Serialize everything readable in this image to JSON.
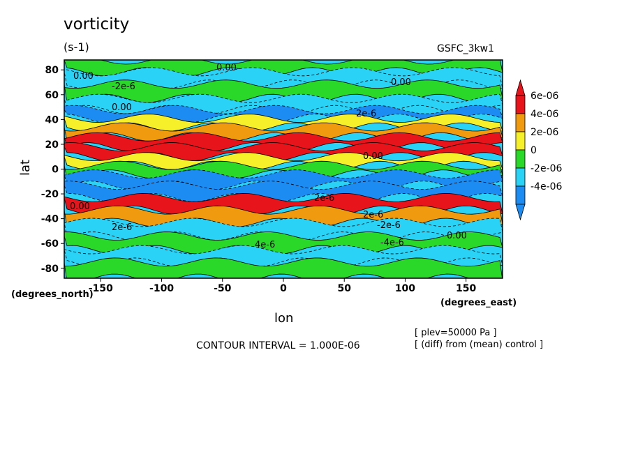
{
  "chart_data": {
    "type": "contour-map",
    "title": "vorticity",
    "units": "(s-1)",
    "model": "GSFC_3kw1",
    "xlabel": "lon",
    "ylabel": "lat",
    "x_unit_label": "(degrees_east)",
    "y_unit_label": "(degrees_north)",
    "xlim": [
      -180,
      180
    ],
    "ylim": [
      -88,
      88
    ],
    "x_ticks": [
      "-150",
      "-100",
      "-50",
      "0",
      "50",
      "100",
      "150"
    ],
    "y_ticks": [
      "80",
      "60",
      "40",
      "20",
      "0",
      "-20",
      "-40",
      "-60",
      "-80"
    ],
    "contour_interval": "CONTOUR INTERVAL = 1.000E-06",
    "plev": "[ plev=50000 Pa ]",
    "diff_note": "[ (diff) from (mean) control ]",
    "colorbar": {
      "labels": [
        "6e-06",
        "4e-06",
        "2e-06",
        "0",
        "-2e-06",
        "-4e-06"
      ],
      "colors": [
        "#e8141c",
        "#f09a10",
        "#f6f02a",
        "#2ad82a",
        "#2ad2f5",
        "#1c8cf2"
      ]
    },
    "contour_labels": [
      "0.00",
      "0.00",
      "0.00",
      "-2e-6",
      "0.00",
      "2e-6",
      "0.00",
      "2e-6",
      "2e-6",
      "-2e-6",
      "-4e-6",
      "4e-6",
      "2e-6",
      "0.00",
      "0.00"
    ],
    "bands": [
      {
        "lat": 82,
        "value": 0
      },
      {
        "lat": 75,
        "value": -2e-06
      },
      {
        "lat": 62,
        "value": 0
      },
      {
        "lat": 52,
        "value": -2e-06
      },
      {
        "lat": 44,
        "value": -4e-06
      },
      {
        "lat": 38,
        "value": 2e-06
      },
      {
        "lat": 30,
        "value": 4e-06
      },
      {
        "lat": 22,
        "value": 6e-06
      },
      {
        "lat": 14,
        "value": 6e-06
      },
      {
        "lat": 6,
        "value": 2e-06
      },
      {
        "lat": 0,
        "value": 0
      },
      {
        "lat": -8,
        "value": -4e-06
      },
      {
        "lat": -18,
        "value": -4e-06
      },
      {
        "lat": -28,
        "value": 6e-06
      },
      {
        "lat": -38,
        "value": 4e-06
      },
      {
        "lat": -48,
        "value": -2e-06
      },
      {
        "lat": -60,
        "value": 0
      },
      {
        "lat": -70,
        "value": -2e-06
      },
      {
        "lat": -80,
        "value": 0
      }
    ]
  }
}
